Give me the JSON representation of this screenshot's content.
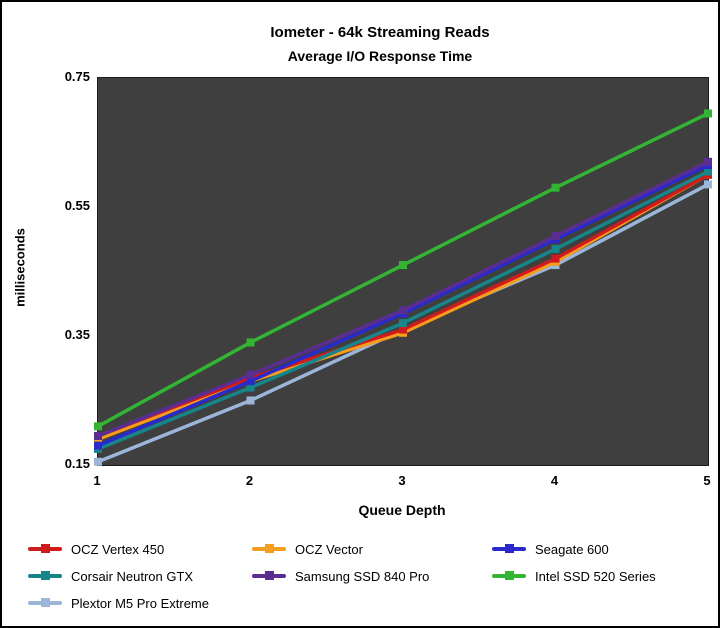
{
  "title": "Iometer - 64k Streaming Reads",
  "subtitle": "Average I/O Response Time",
  "chart_data": {
    "type": "line",
    "x": [
      1,
      2,
      3,
      4,
      5
    ],
    "xlabel": "Queue Depth",
    "ylabel": "milliseconds",
    "ylim": [
      0.15,
      0.75
    ],
    "yticks": [
      0.15,
      0.35,
      0.55,
      0.75
    ],
    "plot_background": "#3f3f3f",
    "legend_position": "bottom",
    "grid": false,
    "series": [
      {
        "name": "OCZ Vertex 450",
        "color": "#cf1b1b",
        "values": [
          0.195,
          0.285,
          0.36,
          0.47,
          0.6
        ]
      },
      {
        "name": "OCZ Vector",
        "color": "#f59d1e",
        "values": [
          0.19,
          0.28,
          0.355,
          0.465,
          0.6
        ]
      },
      {
        "name": "Seagate 600",
        "color": "#2a2acc",
        "values": [
          0.18,
          0.28,
          0.385,
          0.5,
          0.615
        ]
      },
      {
        "name": "Corsair Neutron GTX",
        "color": "#17868a",
        "values": [
          0.175,
          0.27,
          0.37,
          0.485,
          0.605
        ]
      },
      {
        "name": "Samsung SSD 840 Pro",
        "color": "#5a2d91",
        "values": [
          0.195,
          0.29,
          0.39,
          0.505,
          0.62
        ]
      },
      {
        "name": "Intel SSD 520 Series",
        "color": "#33b433",
        "values": [
          0.21,
          0.34,
          0.46,
          0.58,
          0.695
        ]
      },
      {
        "name": "Plextor M5 Pro Extreme",
        "color": "#9cb6d9",
        "values": [
          0.155,
          0.25,
          0.36,
          0.46,
          0.585
        ]
      }
    ],
    "draw_order": [
      6,
      1,
      0,
      3,
      2,
      4,
      5
    ]
  }
}
